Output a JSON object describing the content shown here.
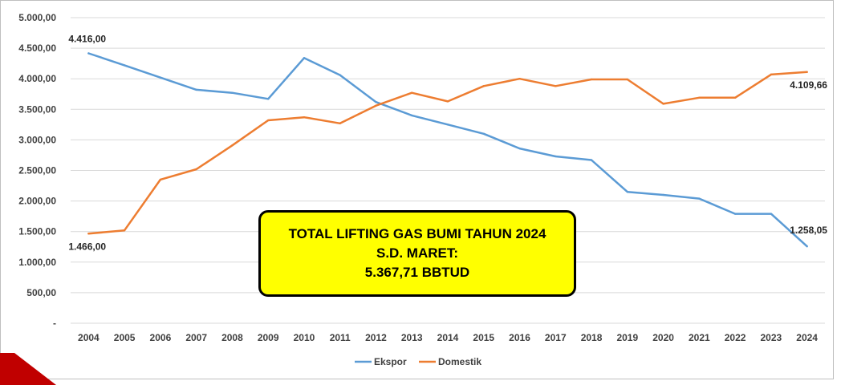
{
  "chart_data": {
    "type": "line",
    "title": "",
    "xlabel": "",
    "ylabel": "",
    "ylim": [
      0,
      5000
    ],
    "yticks": [
      0,
      500,
      1000,
      1500,
      2000,
      2500,
      3000,
      3500,
      4000,
      4500,
      5000
    ],
    "ytick_labels": [
      "-",
      "500,00",
      "1.000,00",
      "1.500,00",
      "2.000,00",
      "2.500,00",
      "3.000,00",
      "3.500,00",
      "4.000,00",
      "4.500,00",
      "5.000,00"
    ],
    "categories": [
      "2004",
      "2005",
      "2006",
      "2007",
      "2008",
      "2009",
      "2010",
      "2011",
      "2012",
      "2013",
      "2014",
      "2015",
      "2016",
      "2017",
      "2018",
      "2019",
      "2020",
      "2021",
      "2022",
      "2023",
      "2024"
    ],
    "series": [
      {
        "name": "Ekspor",
        "color": "#5b9bd5",
        "values": [
          4416.0,
          4220,
          4020,
          3820,
          3770,
          3670,
          4340,
          4060,
          3620,
          3400,
          3250,
          3100,
          2860,
          2730,
          2670,
          2150,
          2100,
          2040,
          1790,
          1790,
          1258.05
        ]
      },
      {
        "name": "Domestik",
        "color": "#ed7d31",
        "values": [
          1466.0,
          1520,
          2350,
          2520,
          2910,
          3320,
          3370,
          3270,
          3560,
          3770,
          3630,
          3880,
          4000,
          3880,
          3990,
          3990,
          3590,
          3690,
          3690,
          4070,
          4109.66
        ]
      }
    ],
    "data_labels": [
      {
        "series": "Ekspor",
        "index": 0,
        "text": "4.416,00"
      },
      {
        "series": "Domestik",
        "index": 0,
        "text": "1.466,00"
      },
      {
        "series": "Domestik",
        "index": 20,
        "text": "4.109,66"
      },
      {
        "series": "Ekspor",
        "index": 20,
        "text": "1.258,05"
      }
    ],
    "legend": {
      "position": "bottom",
      "items": [
        "Ekspor",
        "Domestik"
      ]
    },
    "grid": true
  },
  "callout": {
    "line1": "TOTAL LIFTING GAS BUMI TAHUN 2024",
    "line2": "S.D. MARET:",
    "line3": "5.367,71 BBTUD"
  },
  "colors": {
    "grid": "#d9d9d9",
    "border": "#bfbfbf",
    "callout_bg": "#ffff00",
    "corner_accent": "#c00000"
  }
}
